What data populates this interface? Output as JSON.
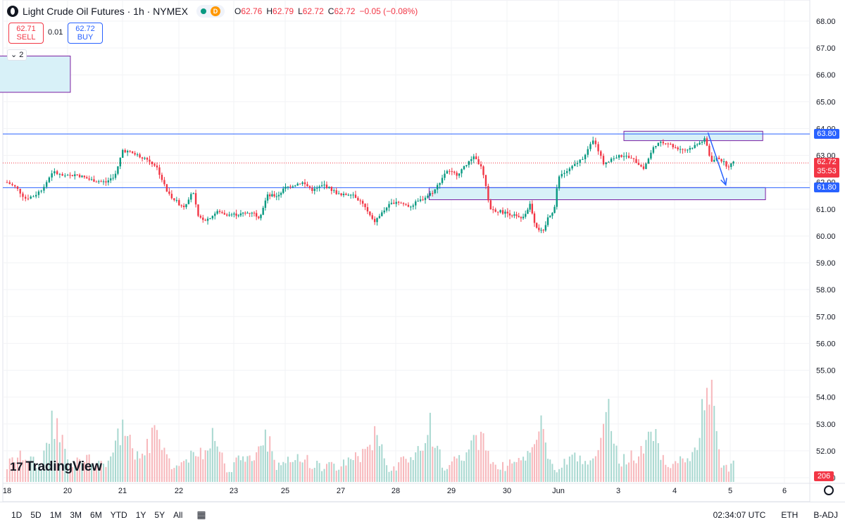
{
  "header": {
    "title": "Light Crude Oil Futures · 1h · NYMEX",
    "d_badge": "D",
    "ohlc": [
      {
        "k": "O",
        "v": "62.76"
      },
      {
        "k": "H",
        "v": "62.79"
      },
      {
        "k": "L",
        "v": "62.72"
      },
      {
        "k": "C",
        "v": "62.72"
      },
      {
        "k": "",
        "v": "−0.05 (−0.08%)"
      }
    ]
  },
  "trade": {
    "sell_price": "62.71",
    "sell_label": "SELL",
    "spread": "0.01",
    "buy_price": "62.72",
    "buy_label": "BUY"
  },
  "collapse_label": "2",
  "logo_text": "TradingView",
  "price_labels": {
    "level_high": "63.80",
    "current": "62.72",
    "countdown": "35:53",
    "level_low": "61.80",
    "volume": "206"
  },
  "bottom_bar": {
    "timeframes": [
      "1D",
      "5D",
      "1M",
      "3M",
      "6M",
      "YTD",
      "1Y",
      "5Y",
      "All"
    ],
    "time": "02:34:07 UTC",
    "session": "ETH",
    "adj": "B-ADJ"
  },
  "colors": {
    "up": "#089981",
    "down": "#f23645",
    "up_vol": "#a8d8d0",
    "down_vol": "#f7b7bb",
    "level_line": "#2962ff",
    "zone_fill": "#d8f1f8",
    "zone_border": "#7b1fa2",
    "arrow": "#2962ff"
  },
  "chart_data": {
    "type": "candlestick",
    "y_axis": {
      "ticks": [
        "68.00",
        "67.00",
        "66.00",
        "65.00",
        "64.00",
        "63.00",
        "62.00",
        "61.00",
        "60.00",
        "59.00",
        "58.00",
        "57.00",
        "56.00",
        "55.00",
        "54.00",
        "53.00",
        "52.00",
        "51.00"
      ],
      "range": [
        50.6,
        68.3
      ]
    },
    "x_axis": {
      "labels": [
        {
          "label": "18",
          "t": 0
        },
        {
          "label": "20",
          "t": 1
        },
        {
          "label": "21",
          "t": 2
        },
        {
          "label": "22",
          "t": 3
        },
        {
          "label": "23",
          "t": 4
        },
        {
          "label": "25",
          "t": 5
        },
        {
          "label": "27",
          "t": 6
        },
        {
          "label": "28",
          "t": 7
        },
        {
          "label": "29",
          "t": 8
        },
        {
          "label": "30",
          "t": 9
        },
        {
          "label": "Jun",
          "t": 10
        },
        {
          "label": "3",
          "t": 11
        },
        {
          "label": "4",
          "t": 12
        },
        {
          "label": "5",
          "t": 13
        },
        {
          "label": "6",
          "t": 14
        }
      ]
    },
    "horizontal_levels": [
      63.8,
      61.8
    ],
    "current_price": 62.72,
    "zones": [
      {
        "t0": 11.1,
        "t1": 13.6,
        "y0": 63.55,
        "y1": 63.9
      },
      {
        "t0": 7.6,
        "t1": 13.65,
        "y0": 61.35,
        "y1": 61.8
      },
      {
        "t0": -0.3,
        "t1": 1.05,
        "y0": 65.35,
        "y1": 66.7
      }
    ],
    "arrow": {
      "t0": 12.6,
      "y0": 63.85,
      "t1": 12.92,
      "y1": 61.9
    },
    "price_path": [
      {
        "t": 0.0,
        "p": 62.0
      },
      {
        "t": 0.15,
        "p": 61.8
      },
      {
        "t": 0.3,
        "p": 61.4
      },
      {
        "t": 0.45,
        "p": 61.5
      },
      {
        "t": 0.6,
        "p": 61.8
      },
      {
        "t": 0.75,
        "p": 62.4
      },
      {
        "t": 0.95,
        "p": 62.2
      },
      {
        "t": 1.15,
        "p": 62.3
      },
      {
        "t": 1.4,
        "p": 62.1
      },
      {
        "t": 1.7,
        "p": 62.0
      },
      {
        "t": 1.88,
        "p": 62.3
      },
      {
        "t": 2.0,
        "p": 63.2
      },
      {
        "t": 2.15,
        "p": 63.1
      },
      {
        "t": 2.4,
        "p": 62.9
      },
      {
        "t": 2.6,
        "p": 62.6
      },
      {
        "t": 2.8,
        "p": 61.6
      },
      {
        "t": 3.0,
        "p": 61.2
      },
      {
        "t": 3.1,
        "p": 61.1
      },
      {
        "t": 3.25,
        "p": 61.7
      },
      {
        "t": 3.35,
        "p": 60.7
      },
      {
        "t": 3.5,
        "p": 60.6
      },
      {
        "t": 3.7,
        "p": 60.9
      },
      {
        "t": 3.9,
        "p": 60.8
      },
      {
        "t": 4.1,
        "p": 60.8
      },
      {
        "t": 4.35,
        "p": 60.9
      },
      {
        "t": 4.5,
        "p": 60.7
      },
      {
        "t": 4.65,
        "p": 61.5
      },
      {
        "t": 4.85,
        "p": 61.5
      },
      {
        "t": 5.0,
        "p": 61.8
      },
      {
        "t": 5.3,
        "p": 62.0
      },
      {
        "t": 5.5,
        "p": 61.7
      },
      {
        "t": 5.7,
        "p": 61.9
      },
      {
        "t": 6.0,
        "p": 61.5
      },
      {
        "t": 6.2,
        "p": 61.6
      },
      {
        "t": 6.4,
        "p": 61.2
      },
      {
        "t": 6.6,
        "p": 60.5
      },
      {
        "t": 6.85,
        "p": 61.1
      },
      {
        "t": 7.0,
        "p": 61.3
      },
      {
        "t": 7.25,
        "p": 61.1
      },
      {
        "t": 7.5,
        "p": 61.4
      },
      {
        "t": 7.7,
        "p": 61.7
      },
      {
        "t": 7.9,
        "p": 62.4
      },
      {
        "t": 8.1,
        "p": 62.3
      },
      {
        "t": 8.3,
        "p": 62.7
      },
      {
        "t": 8.4,
        "p": 63.0
      },
      {
        "t": 8.55,
        "p": 62.5
      },
      {
        "t": 8.7,
        "p": 61.0
      },
      {
        "t": 8.9,
        "p": 60.9
      },
      {
        "t": 9.1,
        "p": 60.8
      },
      {
        "t": 9.3,
        "p": 60.6
      },
      {
        "t": 9.45,
        "p": 61.2
      },
      {
        "t": 9.55,
        "p": 60.4
      },
      {
        "t": 9.7,
        "p": 60.1
      },
      {
        "t": 9.8,
        "p": 60.7
      },
      {
        "t": 9.92,
        "p": 61.0
      },
      {
        "t": 10.0,
        "p": 62.2
      },
      {
        "t": 10.2,
        "p": 62.5
      },
      {
        "t": 10.4,
        "p": 62.9
      },
      {
        "t": 10.6,
        "p": 63.6
      },
      {
        "t": 10.75,
        "p": 62.7
      },
      {
        "t": 10.9,
        "p": 62.9
      },
      {
        "t": 11.1,
        "p": 63.0
      },
      {
        "t": 11.3,
        "p": 62.8
      },
      {
        "t": 11.45,
        "p": 62.5
      },
      {
        "t": 11.65,
        "p": 63.4
      },
      {
        "t": 11.85,
        "p": 63.5
      },
      {
        "t": 12.0,
        "p": 63.3
      },
      {
        "t": 12.2,
        "p": 63.2
      },
      {
        "t": 12.4,
        "p": 63.4
      },
      {
        "t": 12.55,
        "p": 63.6
      },
      {
        "t": 12.65,
        "p": 62.8
      },
      {
        "t": 12.8,
        "p": 62.9
      },
      {
        "t": 12.95,
        "p": 62.6
      },
      {
        "t": 13.06,
        "p": 62.72
      }
    ],
    "volume_spikes": [
      {
        "t": 0.8,
        "v": 850
      },
      {
        "t": 2.0,
        "v": 720
      },
      {
        "t": 2.6,
        "v": 680
      },
      {
        "t": 3.6,
        "v": 600
      },
      {
        "t": 4.6,
        "v": 700
      },
      {
        "t": 6.6,
        "v": 580
      },
      {
        "t": 7.6,
        "v": 720
      },
      {
        "t": 8.5,
        "v": 560
      },
      {
        "t": 9.6,
        "v": 900
      },
      {
        "t": 10.8,
        "v": 1100
      },
      {
        "t": 11.6,
        "v": 620
      },
      {
        "t": 12.6,
        "v": 1500
      }
    ],
    "volume_last": 206
  }
}
